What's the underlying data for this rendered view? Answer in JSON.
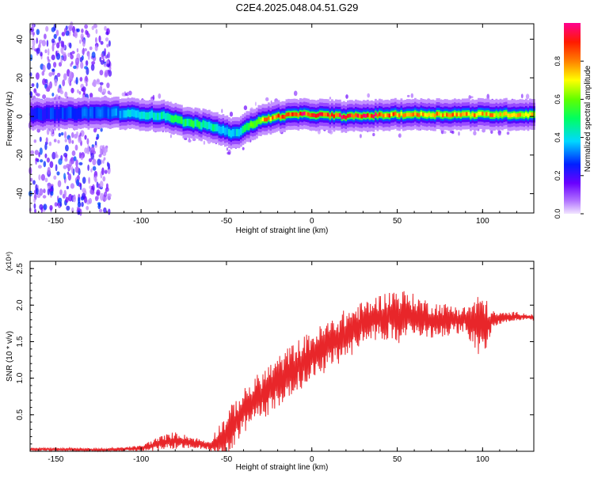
{
  "title": "C2E4.2025.048.04.51.G29",
  "colors": {
    "snr_line": "#e8262a",
    "axis": "#000000"
  },
  "chart_data": [
    {
      "type": "heatmap",
      "xlabel": "Height of straight line (km)",
      "ylabel": "Frequency (Hz)",
      "xlim": [
        -165,
        130
      ],
      "ylim": [
        -50,
        48
      ],
      "xticks": [
        -150,
        -100,
        -50,
        0,
        50,
        100
      ],
      "yticks": [
        -40,
        -20,
        0,
        20,
        40
      ],
      "colorbar": {
        "label": "Normalized spectral amplitude",
        "range": [
          0,
          1
        ],
        "ticks": [
          "0.0",
          "0.2",
          "0.4",
          "0.6",
          "0.8"
        ],
        "colormap": "rainbow (violet→blue→cyan→green→yellow→red→magenta)"
      },
      "ridge": {
        "x": [
          -165,
          -120,
          -100,
          -85,
          -75,
          -60,
          -50,
          -45,
          -40,
          -30,
          -20,
          -10,
          0,
          20,
          50,
          100,
          130
        ],
        "y": [
          1,
          2,
          1,
          0,
          -3,
          -5,
          -8,
          -9,
          -6,
          -2,
          0,
          1,
          1,
          0,
          1,
          1,
          1
        ],
        "peak_amplitude": [
          0.25,
          0.3,
          0.4,
          0.45,
          0.5,
          0.45,
          0.4,
          0.35,
          0.5,
          0.7,
          0.85,
          0.9,
          0.85,
          0.95,
          0.8,
          0.75,
          0.7
        ]
      },
      "scatter_region": {
        "x": [
          -165,
          -118
        ],
        "y": [
          -50,
          48
        ],
        "amplitude": [
          0.05,
          0.3
        ]
      }
    },
    {
      "type": "line",
      "xlabel": "Height of straight line (km)",
      "ylabel": "SNR (10 * v/v)",
      "y_multiplier": "(x10⁴)",
      "xlim": [
        -165,
        130
      ],
      "ylim": [
        0,
        2.6
      ],
      "xticks": [
        -150,
        -100,
        -50,
        0,
        50,
        100
      ],
      "yticks": [
        "0.5",
        "1.0",
        "1.5",
        "2.0",
        "2.5"
      ],
      "envelope": {
        "x": [
          -165,
          -120,
          -100,
          -90,
          -80,
          -70,
          -60,
          -50,
          -45,
          -40,
          -30,
          -20,
          -10,
          0,
          10,
          20,
          30,
          40,
          50,
          60,
          70,
          80,
          90,
          95,
          100,
          105,
          110,
          120,
          130
        ],
        "mean": [
          0.03,
          0.02,
          0.04,
          0.1,
          0.15,
          0.12,
          0.08,
          0.2,
          0.4,
          0.55,
          0.75,
          0.95,
          1.15,
          1.3,
          1.45,
          1.6,
          1.75,
          1.85,
          1.85,
          1.85,
          1.8,
          1.8,
          1.8,
          1.75,
          1.7,
          1.78,
          1.82,
          1.85,
          1.83
        ],
        "amplitude": [
          0.02,
          0.02,
          0.04,
          0.1,
          0.12,
          0.08,
          0.06,
          0.35,
          0.3,
          0.3,
          0.35,
          0.35,
          0.35,
          0.35,
          0.35,
          0.35,
          0.3,
          0.3,
          0.4,
          0.3,
          0.25,
          0.22,
          0.18,
          0.35,
          0.5,
          0.15,
          0.08,
          0.06,
          0.04
        ]
      }
    }
  ]
}
